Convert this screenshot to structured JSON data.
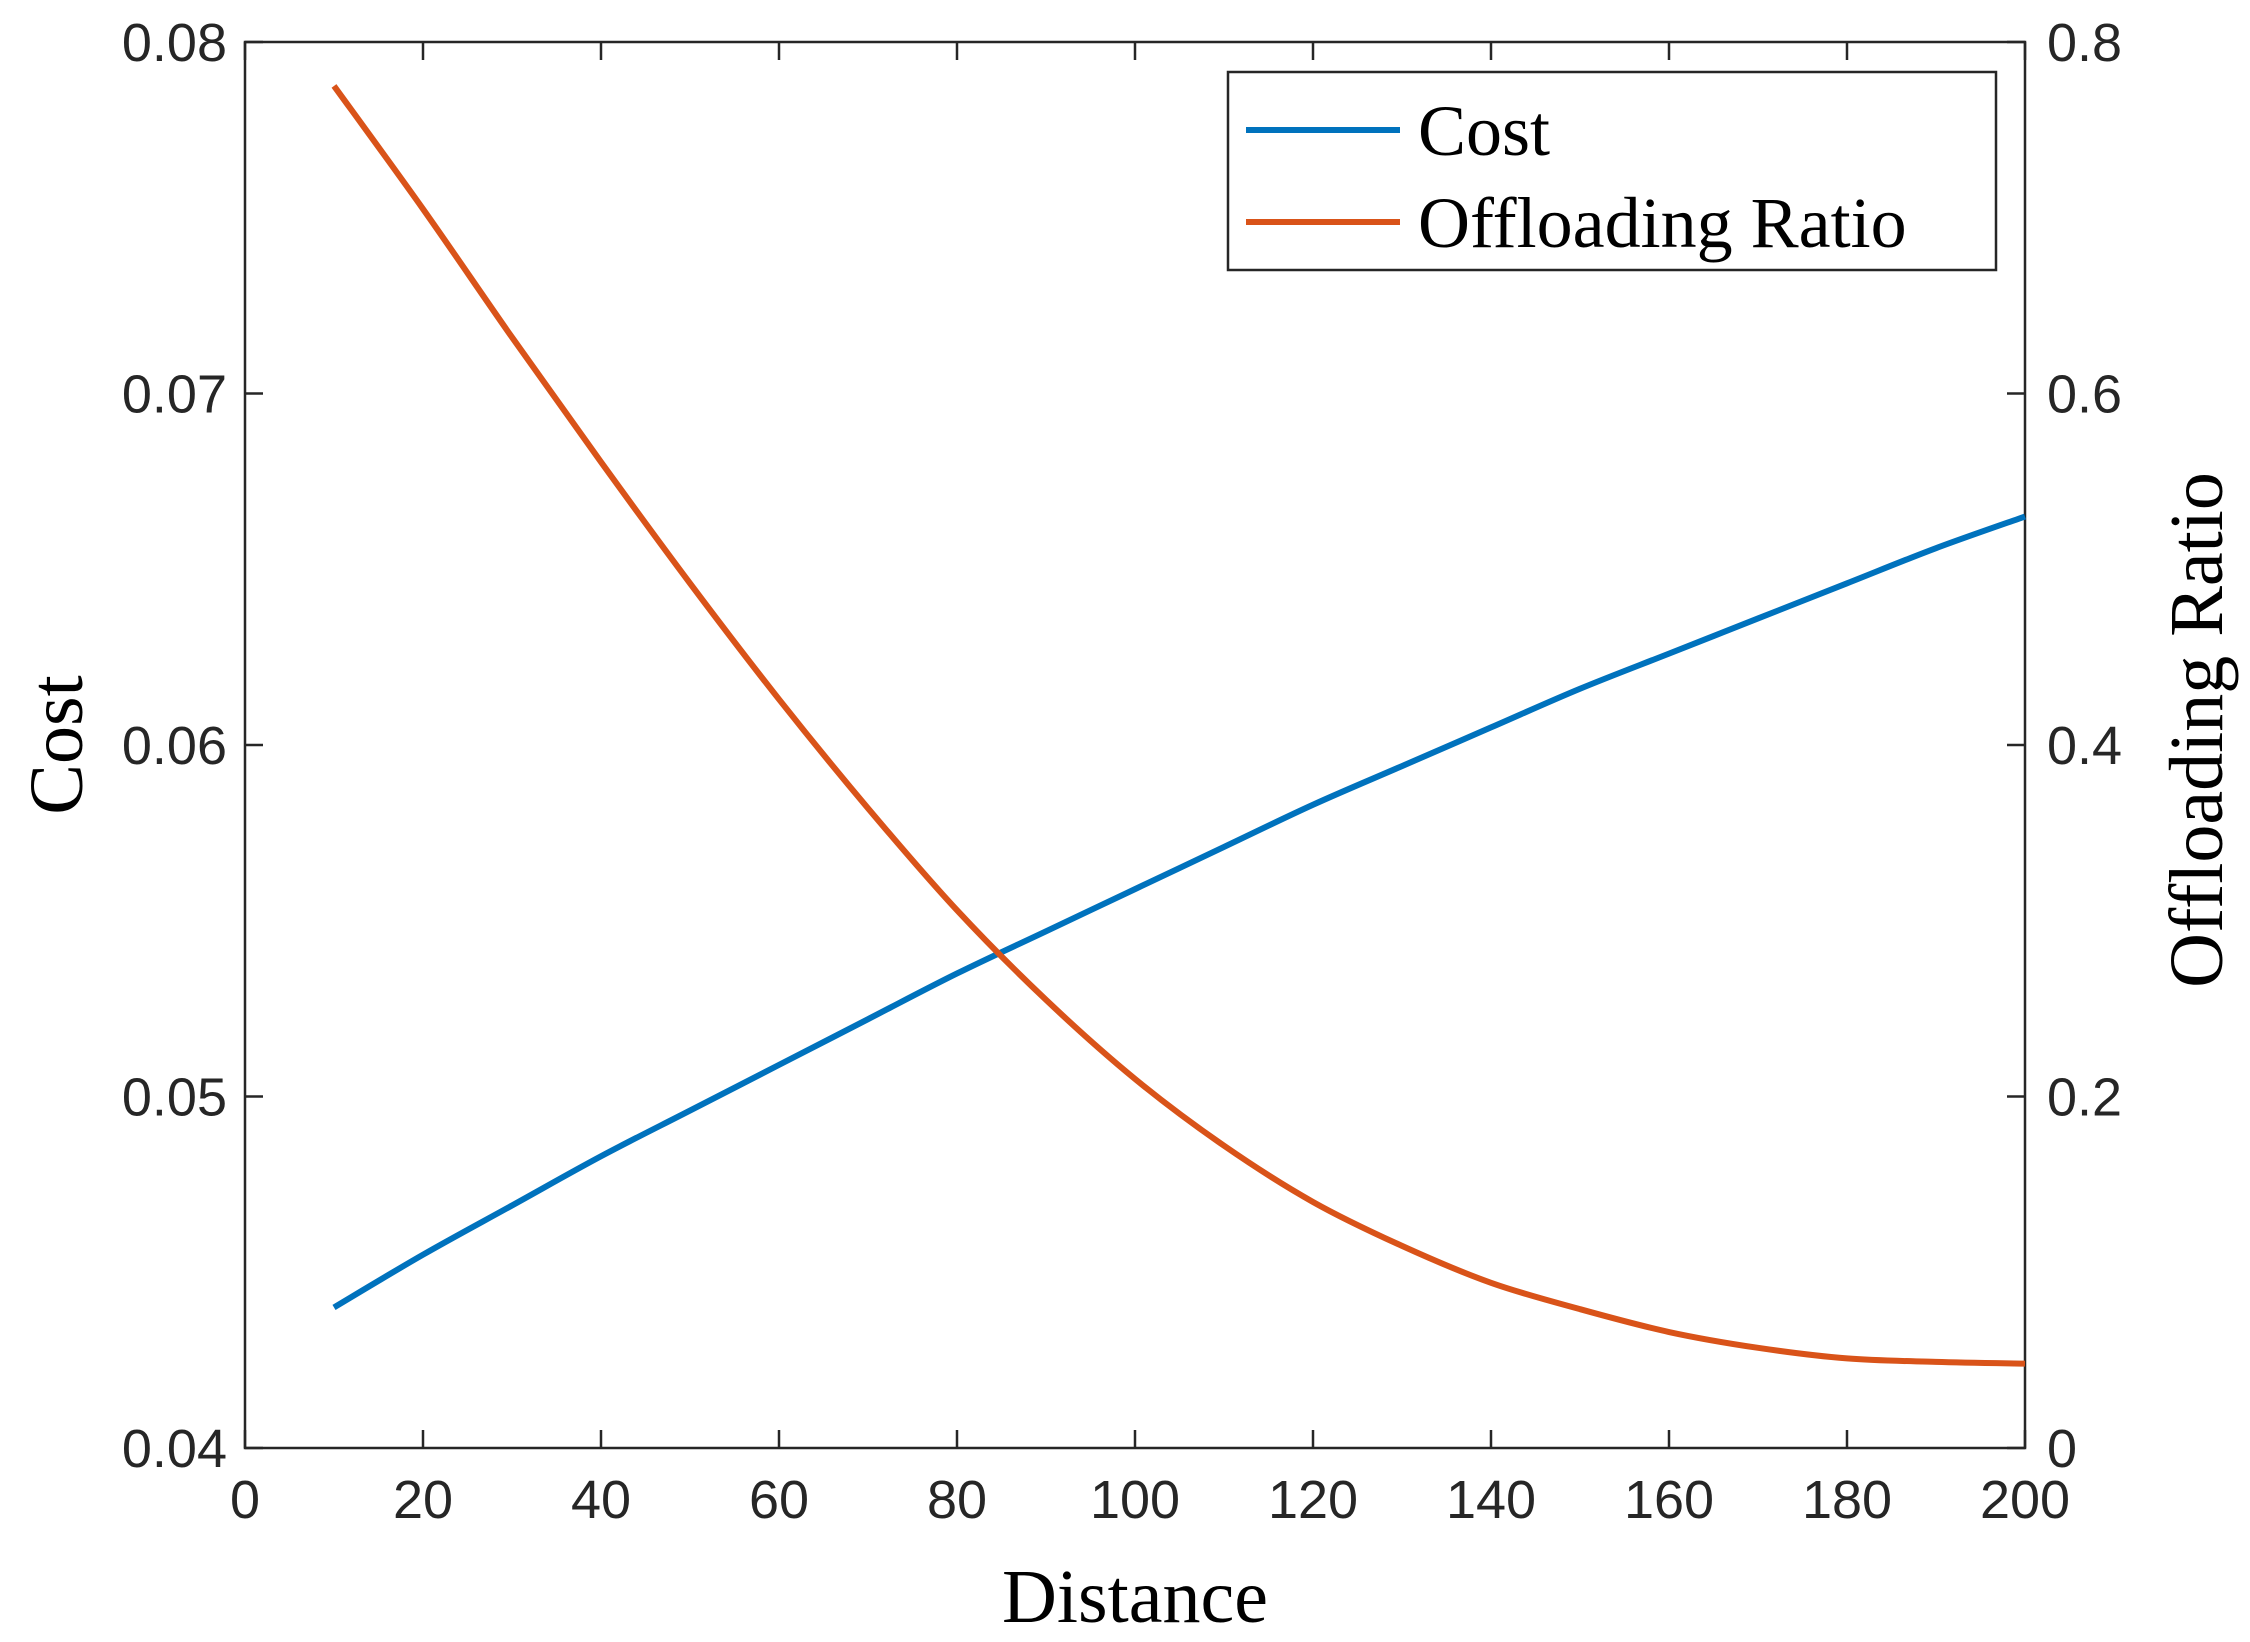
{
  "chart_data": {
    "type": "line",
    "title": "",
    "xlabel": "Distance",
    "ylabel": "Cost",
    "y2label": "Offloading Ratio",
    "xlim": [
      0,
      200
    ],
    "ylim": [
      0.04,
      0.08
    ],
    "y2lim": [
      0,
      0.8
    ],
    "xticks": [
      "0",
      "20",
      "40",
      "60",
      "80",
      "100",
      "120",
      "140",
      "160",
      "180",
      "200"
    ],
    "yticks": [
      "0.04",
      "0.05",
      "0.06",
      "0.07",
      "0.08"
    ],
    "y2ticks": [
      "0",
      "0.2",
      "0.4",
      "0.6",
      "0.8"
    ],
    "grid": false,
    "legend": "top-right",
    "series": [
      {
        "name": "Cost",
        "axis": "left",
        "color": "#0072BD",
        "x": [
          10,
          20,
          30,
          40,
          50,
          60,
          70,
          80,
          90,
          100,
          110,
          120,
          130,
          140,
          150,
          160,
          170,
          180,
          190,
          200
        ],
        "y": [
          0.044,
          0.0455,
          0.0469,
          0.0483,
          0.0496,
          0.0509,
          0.0522,
          0.0535,
          0.0547,
          0.0559,
          0.0571,
          0.0583,
          0.0594,
          0.0605,
          0.0616,
          0.0626,
          0.0636,
          0.0646,
          0.0656,
          0.0665
        ]
      },
      {
        "name": "Offloading Ratio",
        "axis": "right",
        "color": "#D95319",
        "x": [
          10,
          20,
          30,
          40,
          50,
          60,
          70,
          80,
          90,
          100,
          110,
          120,
          130,
          140,
          150,
          160,
          170,
          180,
          190,
          200
        ],
        "y": [
          0.775,
          0.705,
          0.632,
          0.561,
          0.492,
          0.426,
          0.364,
          0.306,
          0.255,
          0.21,
          0.172,
          0.14,
          0.115,
          0.094,
          0.079,
          0.066,
          0.057,
          0.051,
          0.049,
          0.048
        ]
      }
    ]
  }
}
